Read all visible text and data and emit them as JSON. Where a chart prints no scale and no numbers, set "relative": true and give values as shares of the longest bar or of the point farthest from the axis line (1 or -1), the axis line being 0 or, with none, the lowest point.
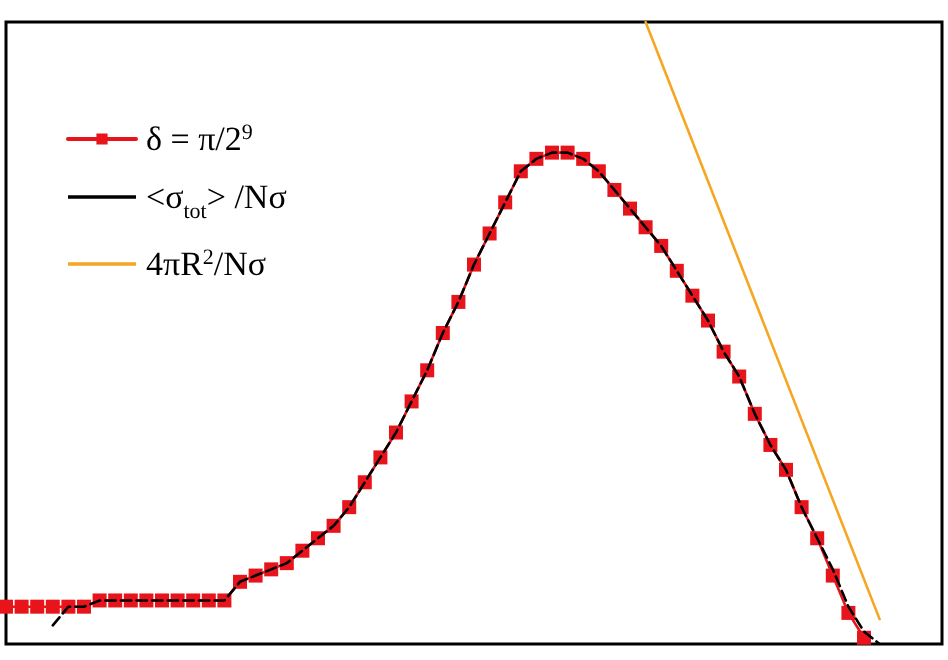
{
  "chart_data": {
    "type": "line",
    "relative": true,
    "legend": "top left",
    "grid": false,
    "categories": [
      null,
      null,
      null,
      null,
      null,
      null,
      null,
      null,
      null,
      null,
      null,
      null,
      null,
      null,
      null,
      null,
      null,
      null,
      null,
      null,
      null,
      null,
      null,
      null,
      null,
      null,
      null,
      null,
      null,
      null,
      null,
      null,
      null,
      null,
      null,
      null,
      null,
      null,
      null,
      null,
      null,
      null,
      null,
      null,
      null,
      null,
      null,
      null,
      null,
      null,
      null,
      null,
      null,
      null,
      null,
      null,
      null,
      null,
      null,
      null,
      null
    ],
    "series": [
      {
        "name": "δ = π/2$^{9}$",
        "color": "#e8141c",
        "marker": "square",
        "line_style": "solid",
        "values": [
          0.06,
          0.06,
          0.06,
          0.06,
          0.06,
          0.06,
          0.07,
          0.07,
          0.07,
          0.07,
          0.07,
          0.07,
          0.07,
          0.07,
          0.07,
          0.1,
          0.11,
          0.12,
          0.13,
          0.15,
          0.17,
          0.19,
          0.22,
          0.26,
          0.3,
          0.34,
          0.39,
          0.44,
          0.5,
          0.55,
          0.61,
          0.66,
          0.71,
          0.76,
          0.78,
          0.79,
          0.79,
          0.78,
          0.76,
          0.73,
          0.7,
          0.67,
          0.64,
          0.6,
          0.56,
          0.52,
          0.47,
          0.43,
          0.37,
          0.32,
          0.28,
          0.22,
          0.17,
          0.11,
          0.05,
          0.01,
          null,
          null,
          null,
          null,
          null
        ]
      },
      {
        "name": "<σ$_{tot}$> /Nσ",
        "color": "#000000",
        "marker": "none",
        "line_style": "dashed",
        "values": [
          null,
          null,
          null,
          0.03,
          0.06,
          0.06,
          0.07,
          0.07,
          0.07,
          0.07,
          0.07,
          0.07,
          0.07,
          0.07,
          0.07,
          0.1,
          0.11,
          0.12,
          0.13,
          0.15,
          0.17,
          0.19,
          0.22,
          0.26,
          0.3,
          0.34,
          0.39,
          0.44,
          0.5,
          0.55,
          0.61,
          0.66,
          0.71,
          0.76,
          0.78,
          0.79,
          0.79,
          0.78,
          0.76,
          0.73,
          0.7,
          0.67,
          0.64,
          0.6,
          0.56,
          0.52,
          0.47,
          0.43,
          0.37,
          0.32,
          0.28,
          0.22,
          0.17,
          0.12,
          0.06,
          0.02,
          0.0,
          null,
          null,
          null,
          null
        ]
      },
      {
        "name": "4πR$^{2}$/Nσ",
        "color": "#f5a623",
        "marker": "none",
        "line_style": "solid",
        "values": [
          null,
          null,
          null,
          null,
          null,
          null,
          null,
          null,
          null,
          null,
          null,
          null,
          null,
          null,
          null,
          null,
          null,
          null,
          null,
          null,
          null,
          null,
          null,
          null,
          null,
          null,
          null,
          null,
          null,
          null,
          null,
          null,
          null,
          null,
          null,
          null,
          null,
          null,
          null,
          null,
          null,
          1.0,
          null,
          null,
          null,
          null,
          null,
          null,
          null,
          null,
          null,
          null,
          null,
          null,
          null,
          null,
          0.04,
          null,
          null,
          null,
          null
        ]
      }
    ]
  }
}
